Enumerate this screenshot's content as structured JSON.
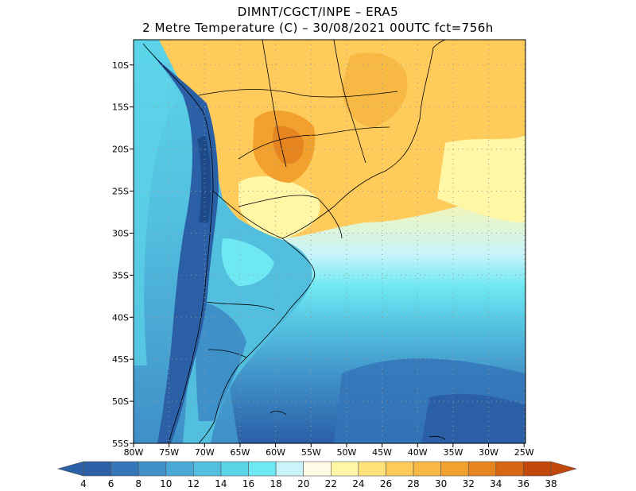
{
  "title": {
    "line1": "DIMNT/CGCT/INPE –  ERA5",
    "line2": "2 Metre Temperature (C) –  30/08/2021 00UTC fct=756h"
  },
  "map": {
    "lat_labels": [
      "10S",
      "15S",
      "20S",
      "25S",
      "30S",
      "35S",
      "40S",
      "45S",
      "50S",
      "55S"
    ],
    "lon_labels": [
      "80W",
      "75W",
      "70W",
      "65W",
      "60W",
      "55W",
      "50W",
      "45W",
      "40W",
      "35W",
      "30W",
      "25W"
    ]
  },
  "colorbar": {
    "labels": [
      "4",
      "6",
      "8",
      "10",
      "12",
      "14",
      "16",
      "18",
      "20",
      "22",
      "24",
      "26",
      "28",
      "30",
      "32",
      "34",
      "36",
      "38"
    ],
    "colors": [
      "#2b5fa6",
      "#3476b8",
      "#3f8fc8",
      "#4aa8d6",
      "#52bfdf",
      "#5cd4e8",
      "#6ee8f2",
      "#c8f4fa",
      "#fffbe6",
      "#fff6a6",
      "#ffe27a",
      "#ffcc5c",
      "#f7b944",
      "#f2a12e",
      "#e6851f",
      "#d66612",
      "#c2470a"
    ]
  }
}
